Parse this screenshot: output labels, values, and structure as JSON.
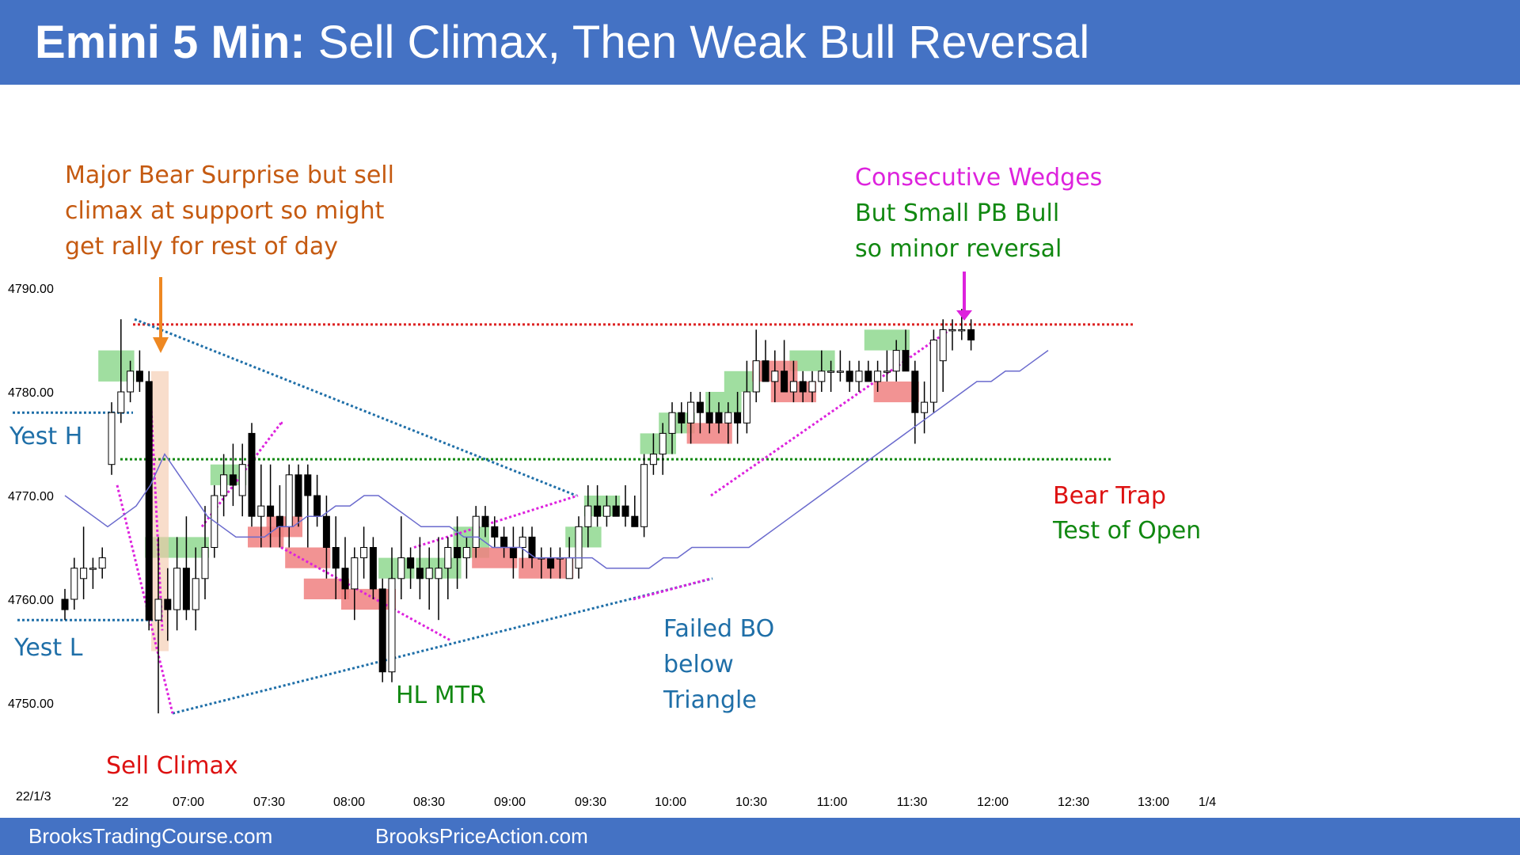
{
  "header": {
    "title_bold": "Emini 5 Min:",
    "title_rest": " Sell Climax, Then Weak Bull Reversal"
  },
  "footer": {
    "left": "BrooksTradingCourse.com",
    "right": "BrooksPriceAction.com"
  },
  "colors": {
    "header": "#4472c4",
    "bull_box": "#8fd88f",
    "bear_box": "#f08080",
    "ema": "#6a6acd",
    "red_line": "#dd2222",
    "green_line": "#118811",
    "blue_line": "#1f6fa8",
    "magenta": "#dd22dd",
    "orange": "#ee8822"
  },
  "chart_data": {
    "type": "candlestick",
    "date_label": "22/1/3",
    "y_ticks": [
      "4790.00",
      "4780.00",
      "4770.00",
      "4760.00",
      "4750.00"
    ],
    "ylim": [
      4747,
      4793
    ],
    "x_ticks": [
      "'22",
      "07:00",
      "07:30",
      "08:00",
      "08:30",
      "09:00",
      "09:30",
      "10:00",
      "10:30",
      "11:00",
      "11:30",
      "12:00",
      "12:30",
      "13:00",
      "1/4"
    ],
    "bars": [
      [
        4760,
        4761,
        4758,
        4759
      ],
      [
        4760,
        4764,
        4759,
        4763
      ],
      [
        4762,
        4767,
        4760,
        4763
      ],
      [
        4763,
        4764,
        4761,
        4763
      ],
      [
        4763,
        4765,
        4762,
        4764
      ],
      [
        4773,
        4779,
        4772,
        4778
      ],
      [
        4778,
        4787,
        4777,
        4780
      ],
      [
        4780,
        4783,
        4779,
        4782
      ],
      [
        4782,
        4784,
        4780,
        4781
      ],
      [
        4781,
        4782,
        4757,
        4758
      ],
      [
        4758,
        4766,
        4749,
        4760
      ],
      [
        4760,
        4763,
        4756,
        4759
      ],
      [
        4759,
        4766,
        4757,
        4763
      ],
      [
        4763,
        4768,
        4758,
        4759
      ],
      [
        4759,
        4765,
        4757,
        4762
      ],
      [
        4762,
        4769,
        4760,
        4765
      ],
      [
        4765,
        4771,
        4764,
        4770
      ],
      [
        4770,
        4774,
        4768,
        4772
      ],
      [
        4772,
        4775,
        4769,
        4771
      ],
      [
        4770,
        4775,
        4768,
        4773
      ],
      [
        4776,
        4777,
        4767,
        4768
      ],
      [
        4768,
        4773,
        4765,
        4769
      ],
      [
        4769,
        4773,
        4765,
        4768
      ],
      [
        4768,
        4771,
        4765,
        4767
      ],
      [
        4767,
        4773,
        4765,
        4772
      ],
      [
        4772,
        4773,
        4767,
        4768
      ],
      [
        4772,
        4773,
        4765,
        4770
      ],
      [
        4770,
        4772,
        4767,
        4768
      ],
      [
        4768,
        4770,
        4762,
        4765
      ],
      [
        4765,
        4768,
        4760,
        4763
      ],
      [
        4763,
        4766,
        4760,
        4761
      ],
      [
        4761,
        4765,
        4758,
        4764
      ],
      [
        4764,
        4767,
        4762,
        4765
      ],
      [
        4765,
        4766,
        4760,
        4761
      ],
      [
        4761,
        4762,
        4752,
        4753
      ],
      [
        4753,
        4765,
        4752,
        4762
      ],
      [
        4762,
        4768,
        4760,
        4764
      ],
      [
        4764,
        4765,
        4761,
        4763
      ],
      [
        4763,
        4766,
        4760,
        4762
      ],
      [
        4762,
        4765,
        4759,
        4763
      ],
      [
        4762,
        4766,
        4758,
        4763
      ],
      [
        4763,
        4766,
        4760,
        4765
      ],
      [
        4765,
        4768,
        4761,
        4764
      ],
      [
        4764,
        4766,
        4762,
        4765
      ],
      [
        4765,
        4769,
        4764,
        4768
      ],
      [
        4768,
        4769,
        4766,
        4767
      ],
      [
        4767,
        4768,
        4765,
        4766
      ],
      [
        4766,
        4767,
        4764,
        4765
      ],
      [
        4765,
        4767,
        4762,
        4764
      ],
      [
        4765,
        4767,
        4763,
        4766
      ],
      [
        4766,
        4767,
        4763,
        4764
      ],
      [
        4764,
        4765,
        4762,
        4764
      ],
      [
        4764,
        4765,
        4762,
        4763
      ],
      [
        4764,
        4765,
        4762,
        4764
      ],
      [
        4762,
        4766,
        4762,
        4764
      ],
      [
        4763,
        4768,
        4762,
        4767
      ],
      [
        4767,
        4771,
        4765,
        4769
      ],
      [
        4769,
        4771,
        4767,
        4768
      ],
      [
        4768,
        4770,
        4767,
        4769
      ],
      [
        4769,
        4770,
        4768,
        4768
      ],
      [
        4769,
        4771,
        4767,
        4768
      ],
      [
        4768,
        4770,
        4767,
        4767
      ],
      [
        4767,
        4774,
        4766,
        4773
      ],
      [
        4773,
        4776,
        4772,
        4774
      ],
      [
        4774,
        4777,
        4772,
        4776
      ],
      [
        4776,
        4779,
        4774,
        4778
      ],
      [
        4778,
        4779,
        4776,
        4777
      ],
      [
        4777,
        4780,
        4775,
        4779
      ],
      [
        4779,
        4780,
        4776,
        4778
      ],
      [
        4778,
        4780,
        4776,
        4777
      ],
      [
        4778,
        4779,
        4776,
        4777
      ],
      [
        4777,
        4779,
        4775,
        4778
      ],
      [
        4778,
        4780,
        4775,
        4777
      ],
      [
        4777,
        4783,
        4776,
        4780
      ],
      [
        4780,
        4786,
        4779,
        4783
      ],
      [
        4783,
        4785,
        4781,
        4781
      ],
      [
        4781,
        4784,
        4779,
        4782
      ],
      [
        4782,
        4785,
        4781,
        4780
      ],
      [
        4780,
        4783,
        4779,
        4781
      ],
      [
        4781,
        4782,
        4779,
        4780
      ],
      [
        4780,
        4782,
        4779,
        4781
      ],
      [
        4781,
        4784,
        4780,
        4782
      ],
      [
        4782,
        4783,
        4780,
        4782
      ],
      [
        4782,
        4784,
        4781,
        4782
      ],
      [
        4782,
        4783,
        4780,
        4781
      ],
      [
        4781,
        4783,
        4780,
        4782
      ],
      [
        4782,
        4783,
        4781,
        4781
      ],
      [
        4781,
        4783,
        4780,
        4782
      ],
      [
        4782,
        4784,
        4781,
        4782
      ],
      [
        4782,
        4785,
        4781,
        4784
      ],
      [
        4784,
        4786,
        4782,
        4782
      ],
      [
        4782,
        4783,
        4775,
        4778
      ],
      [
        4778,
        4781,
        4776,
        4779
      ],
      [
        4779,
        4786,
        4778,
        4785
      ],
      [
        4783,
        4787,
        4780,
        4786
      ],
      [
        4786,
        4787,
        4784,
        4786
      ],
      [
        4786,
        4788,
        4785,
        4786
      ],
      [
        4786,
        4787,
        4784,
        4785
      ]
    ],
    "ema": [
      4770,
      4769,
      4768,
      4767,
      4768,
      4769,
      4771,
      4774,
      4772,
      4770,
      4768,
      4767,
      4766,
      4766,
      4766,
      4767,
      4767,
      4768,
      4768,
      4769,
      4769,
      4770,
      4770,
      4769,
      4768,
      4767,
      4767,
      4767,
      4766,
      4766,
      4765,
      4765,
      4765,
      4764,
      4764,
      4764,
      4764,
      4764,
      4763,
      4763,
      4763,
      4763,
      4764,
      4764,
      4765,
      4765,
      4765,
      4765,
      4765,
      4766,
      4767,
      4768,
      4769,
      4770,
      4771,
      4772,
      4773,
      4774,
      4775,
      4776,
      4777,
      4778,
      4779,
      4780,
      4781,
      4781,
      4782,
      4782,
      4783,
      4784
    ],
    "levels": {
      "red_high": 4786.5,
      "green_mid": 4773.5,
      "yest_high": 4778,
      "yest_low": 4758
    }
  },
  "annotations": {
    "bear_surprise_1": "Major Bear Surprise but sell",
    "bear_surprise_2": "climax at support so might",
    "bear_surprise_3": "get rally for rest of day",
    "wedges_1": "Consecutive Wedges",
    "wedges_2": "But Small PB Bull",
    "wedges_3": "so minor reversal",
    "yest_h": "Yest H",
    "yest_l": "Yest L",
    "sell_climax": "Sell Climax",
    "hl_mtr": "HL MTR",
    "failed_bo_1": "Failed BO",
    "failed_bo_2": "below",
    "failed_bo_3": "Triangle",
    "bear_trap": "Bear Trap",
    "test_open": "Test of Open"
  }
}
